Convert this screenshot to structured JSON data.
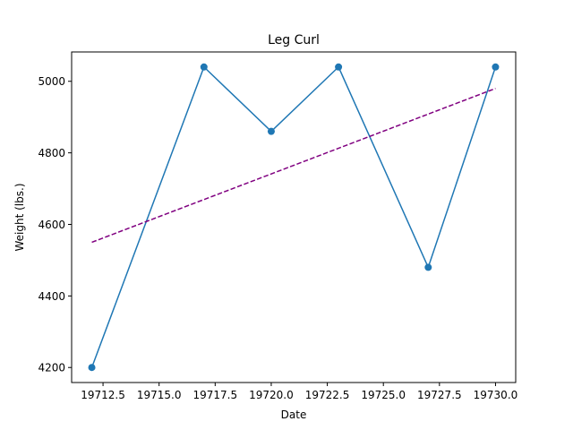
{
  "chart_data": {
    "type": "line",
    "title": "Leg Curl",
    "xlabel": "Date",
    "ylabel": "Weight (lbs.)",
    "xlim": [
      19711.1,
      19730.9
    ],
    "ylim": [
      4158,
      5082
    ],
    "x_ticks": [
      19712.5,
      19715.0,
      19717.5,
      19720.0,
      19722.5,
      19725.0,
      19727.5,
      19730.0
    ],
    "x_tick_labels": [
      "19712.5",
      "19715.0",
      "19717.5",
      "19720.0",
      "19722.5",
      "19725.0",
      "19727.5",
      "19730.0"
    ],
    "y_ticks": [
      4200,
      4400,
      4600,
      4800,
      5000
    ],
    "y_tick_labels": [
      "4200",
      "4400",
      "4600",
      "4800",
      "5000"
    ],
    "grid": false,
    "series": [
      {
        "x": [
          19712,
          19717,
          19720,
          19723,
          19727,
          19730
        ],
        "values": [
          4200,
          5040,
          4860,
          5040,
          4480,
          5040
        ],
        "color": "#1f77b4",
        "style": "solid",
        "marker": "circle"
      },
      {
        "x": [
          19712,
          19730
        ],
        "values": [
          4550,
          4980
        ],
        "color": "#800080",
        "style": "dashed",
        "marker": "none"
      }
    ]
  }
}
